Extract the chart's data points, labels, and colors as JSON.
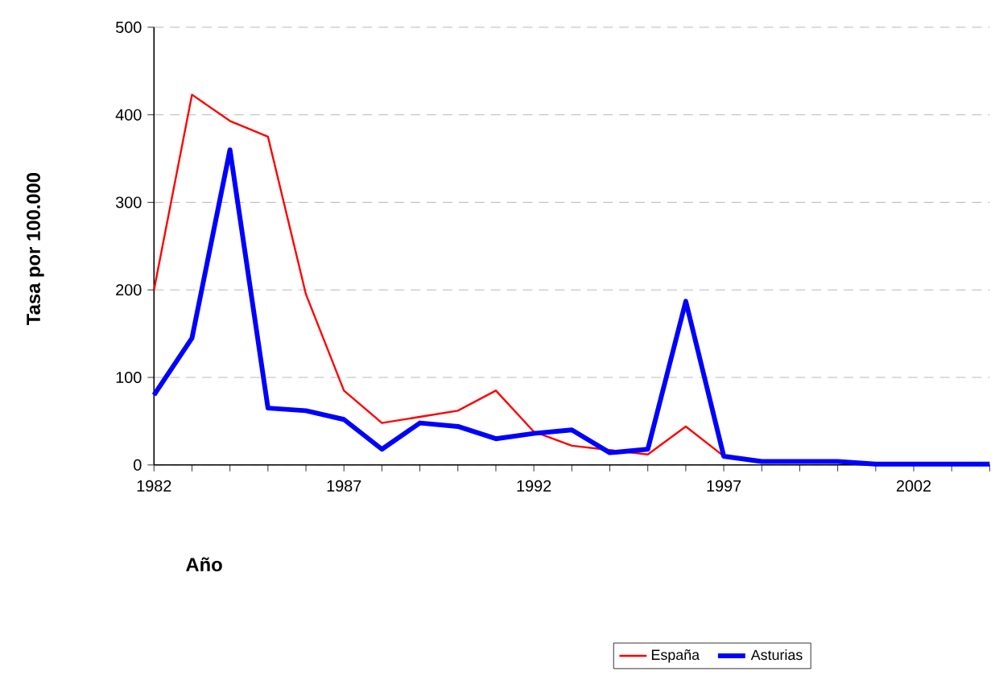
{
  "chart_data": {
    "type": "line",
    "xlabel": "Año",
    "ylabel": "Tasa por 100.000",
    "x": [
      1982,
      1983,
      1984,
      1985,
      1986,
      1987,
      1988,
      1989,
      1990,
      1991,
      1992,
      1993,
      1994,
      1995,
      1996,
      1997,
      1998,
      1999,
      2000,
      2001,
      2002,
      2003,
      2004
    ],
    "series": [
      {
        "name": "España",
        "color": "#ff0000",
        "values": [
          200,
          423,
          393,
          375,
          195,
          85,
          48,
          55,
          62,
          85,
          38,
          22,
          null,
          12,
          44,
          10,
          null,
          null,
          null,
          null,
          null,
          null,
          null
        ]
      },
      {
        "name": "Asturias",
        "color": "#0000ff",
        "values": [
          80,
          145,
          360,
          65,
          62,
          52,
          18,
          48,
          44,
          30,
          36,
          40,
          14,
          18,
          187,
          10,
          4,
          4,
          4,
          1,
          1,
          1,
          1
        ]
      }
    ],
    "xlim": [
      1982,
      2004
    ],
    "xticks": [
      1982,
      {
        "value": 1983,
        "label": null
      },
      {
        "value": 1984,
        "label": null
      },
      {
        "value": 1985,
        "label": null
      },
      {
        "value": 1986,
        "label": null
      },
      1987,
      {
        "value": 1988,
        "label": null
      },
      {
        "value": 1989,
        "label": null
      },
      {
        "value": 1990,
        "label": null
      },
      {
        "value": 1991,
        "label": null
      },
      1992,
      {
        "value": 1993,
        "label": null
      },
      {
        "value": 1994,
        "label": null
      },
      {
        "value": 1995,
        "label": null
      },
      {
        "value": 1996,
        "label": null
      },
      1997,
      {
        "value": 1998,
        "label": null
      },
      {
        "value": 1999,
        "label": null
      },
      {
        "value": 2000,
        "label": null
      },
      {
        "value": 2001,
        "label": null
      },
      2002,
      {
        "value": 2003,
        "label": null
      },
      {
        "value": 2004,
        "label": null
      }
    ],
    "ylim": [
      0,
      500
    ],
    "yticks": [
      0,
      100,
      200,
      300,
      400,
      500
    ],
    "grid": "y",
    "legend": "bottom",
    "marker": "none",
    "line_style": "solid"
  }
}
